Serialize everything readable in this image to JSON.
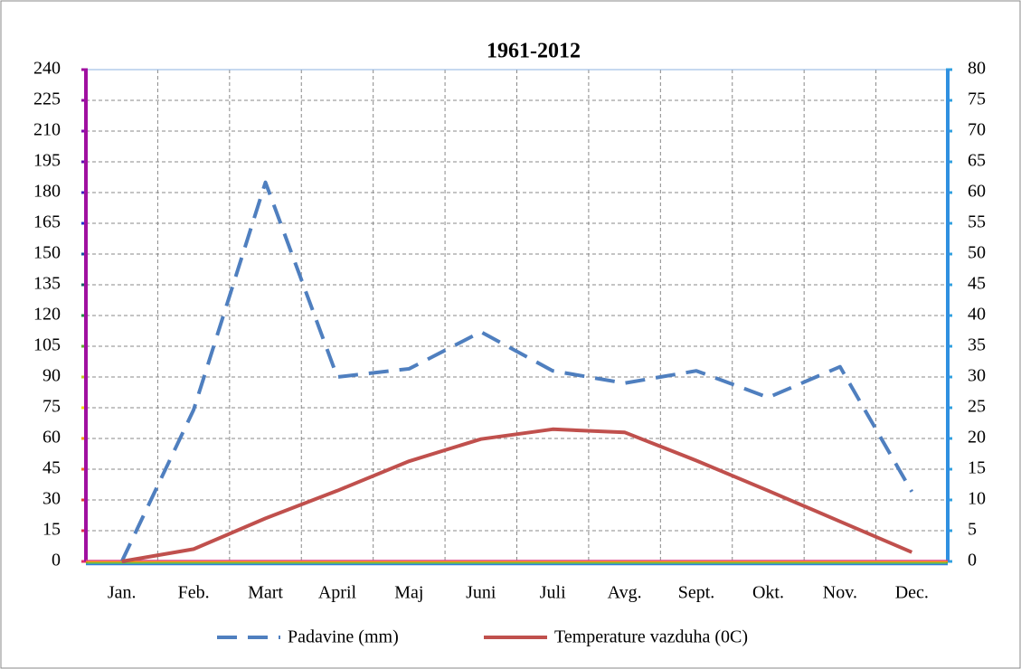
{
  "chart_data": {
    "type": "line",
    "title": "1961-2012",
    "categories": [
      "Jan.",
      "Feb.",
      "Mart",
      "April",
      "Maj",
      "Juni",
      "Juli",
      "Avg.",
      "Sept.",
      "Okt.",
      "Nov.",
      "Dec."
    ],
    "series": [
      {
        "name": "Padavine (mm)",
        "color": "#4f7fbf",
        "dash": true,
        "values": [
          0,
          74,
          185,
          90,
          94,
          112,
          93,
          87,
          93,
          80,
          95,
          34
        ]
      },
      {
        "name": "Temperature vazduha (0C)",
        "color": "#c0504d",
        "axis": "y2",
        "values": [
          0,
          2,
          7,
          11.5,
          16.3,
          19.9,
          21.5,
          21,
          16.4,
          11.5,
          6.5,
          1.5
        ]
      }
    ],
    "ylim": [
      0,
      240
    ],
    "yticks": [
      0,
      15,
      30,
      45,
      60,
      75,
      90,
      105,
      120,
      135,
      150,
      165,
      180,
      195,
      210,
      225,
      240
    ],
    "y2lim": [
      0,
      80
    ],
    "y2ticks": [
      0,
      5,
      10,
      15,
      20,
      25,
      30,
      35,
      40,
      45,
      50,
      55,
      60,
      65,
      70,
      75,
      80
    ],
    "grid": true,
    "legend": "bottom"
  }
}
